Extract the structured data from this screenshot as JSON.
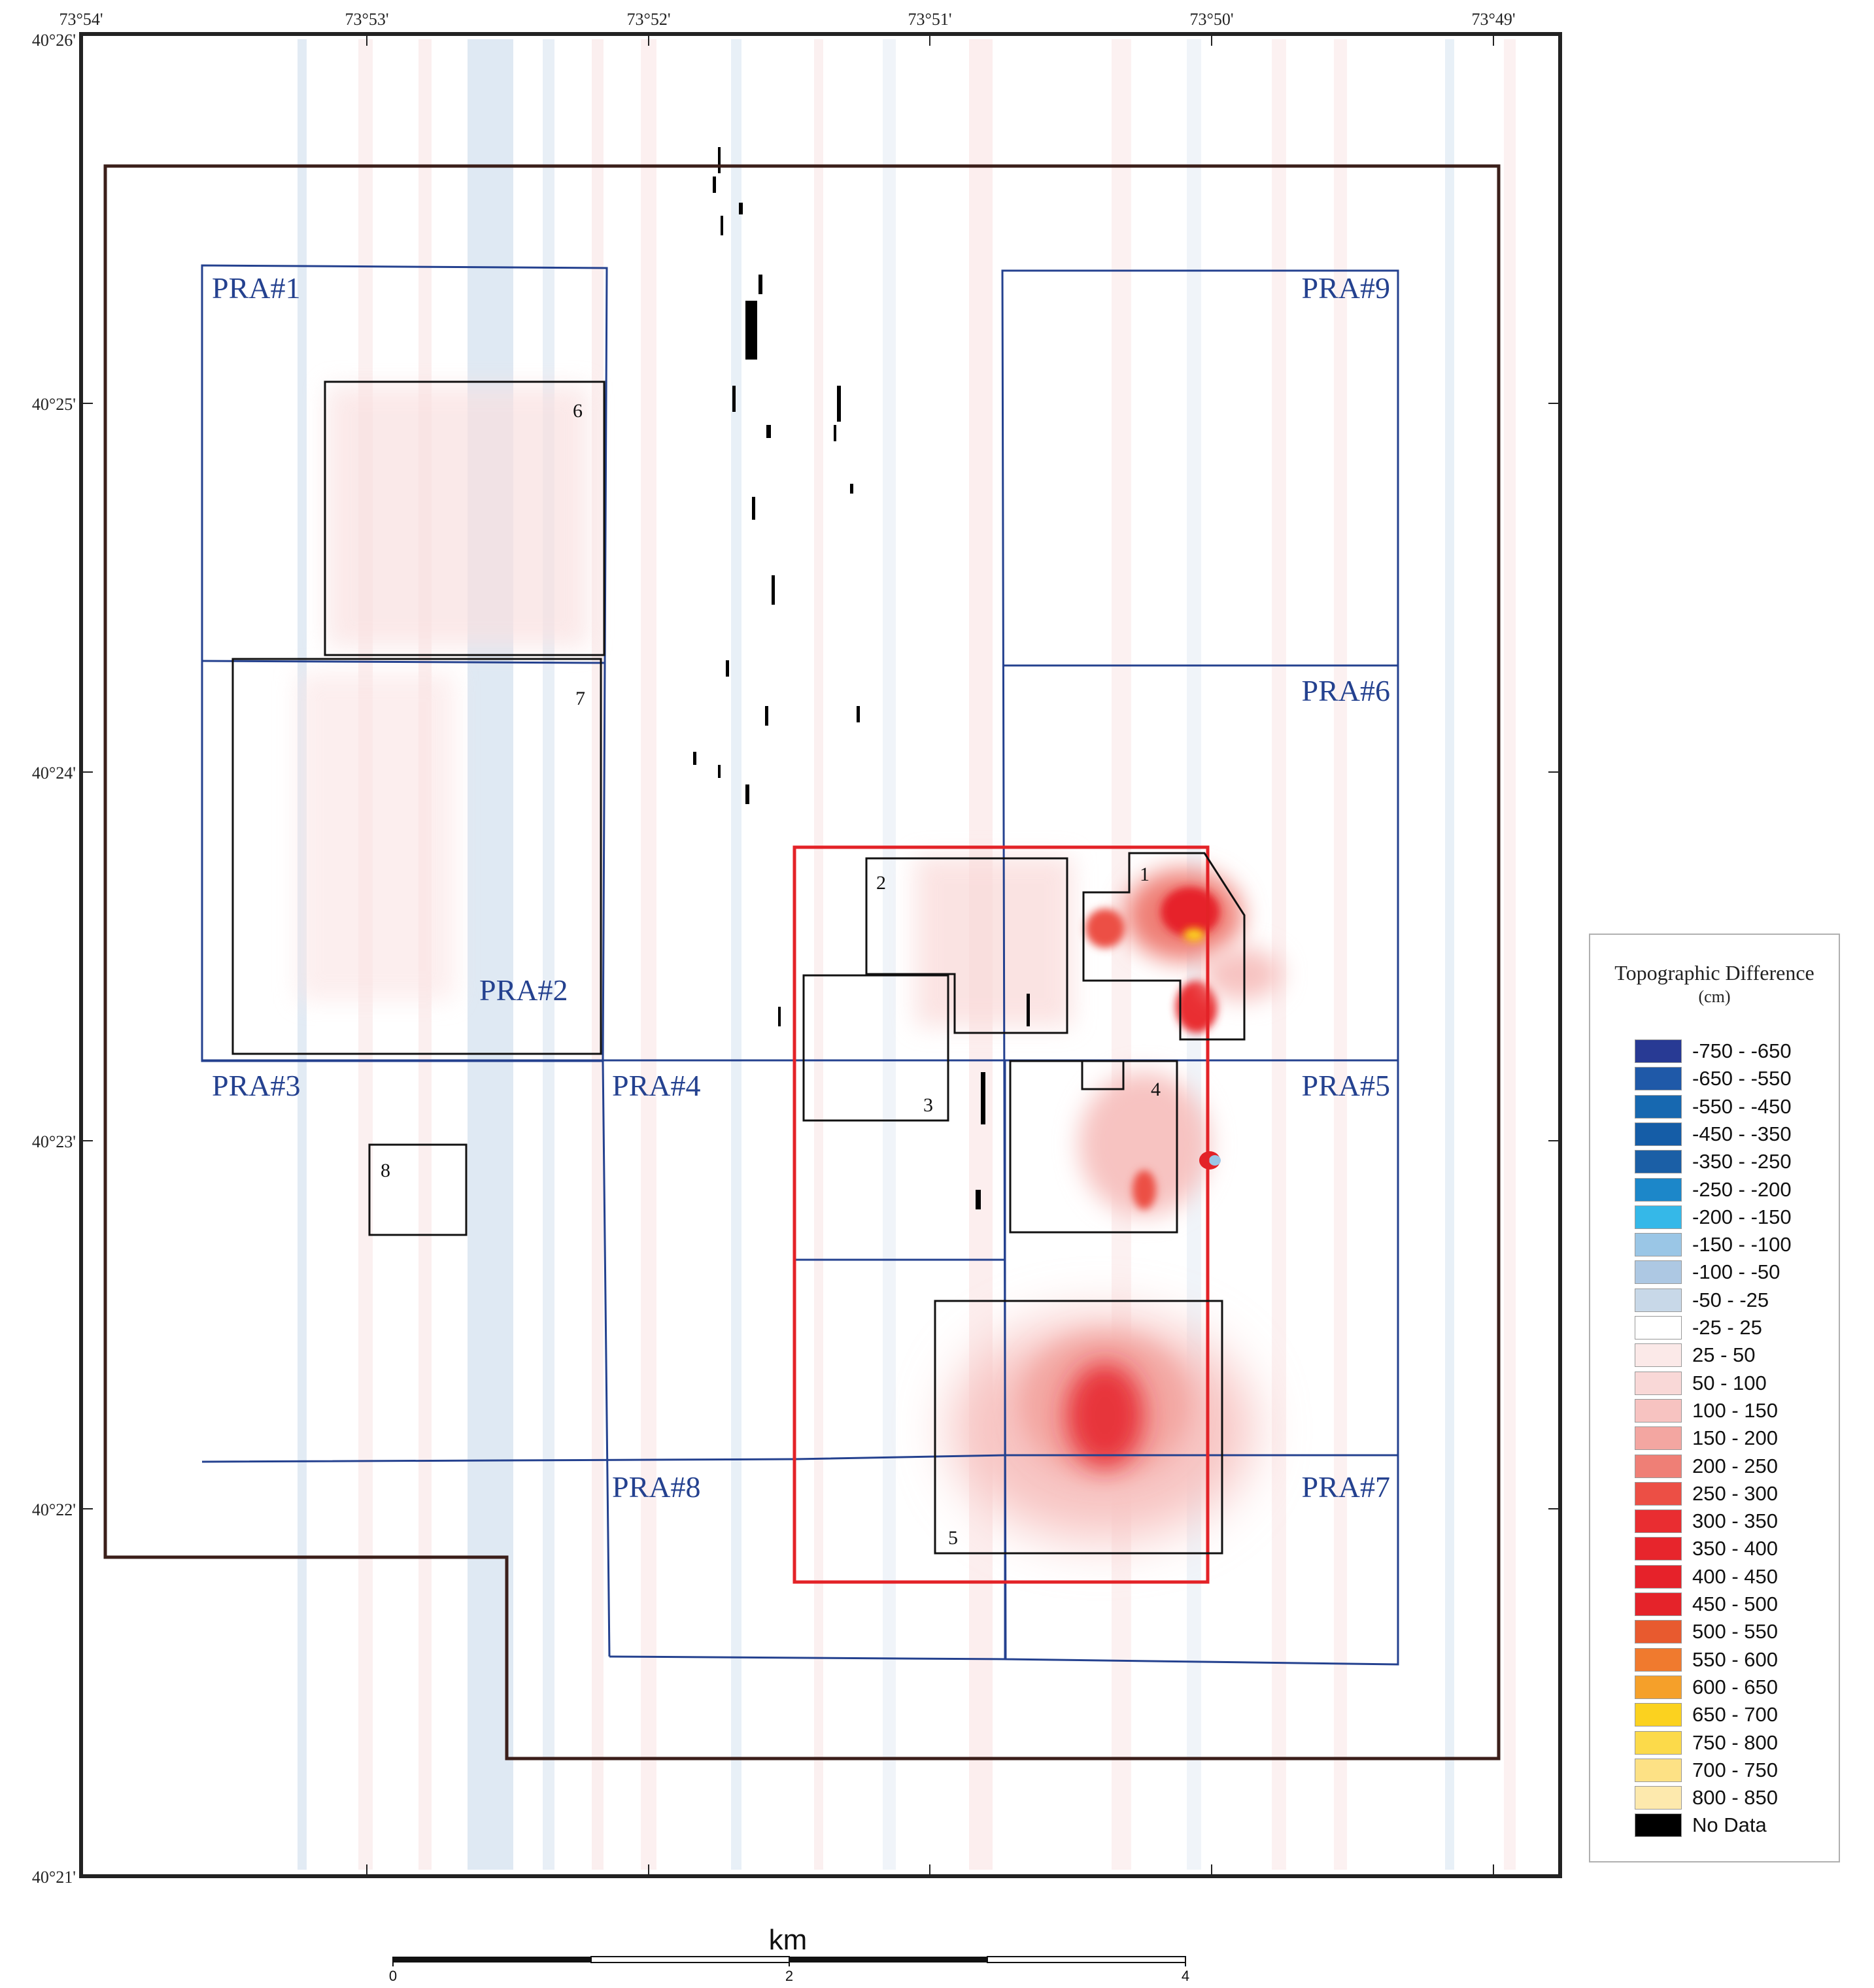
{
  "top_longitude_labels": [
    "73°54'",
    "73°53'",
    "73°52'",
    "73°51'",
    "73°50'",
    "73°49'"
  ],
  "left_latitude_labels": [
    "40°26'",
    "40°25'",
    "40°24'",
    "40°23'",
    "40°22'",
    "40°21'"
  ],
  "permitted_areas": [
    "PRA#1",
    "PRA#2",
    "PRA#3",
    "PRA#4",
    "PRA#5",
    "PRA#6",
    "PRA#7",
    "PRA#8",
    "PRA#9"
  ],
  "box_numbers": [
    "1",
    "2",
    "3",
    "4",
    "5",
    "6",
    "7",
    "8"
  ],
  "scale_bar": {
    "unit": "km",
    "ticks": [
      "0",
      "2",
      "4"
    ]
  },
  "legend": {
    "title": "Topographic Difference",
    "unit": "(cm)",
    "items": [
      {
        "label": "-750 - -650",
        "color": "#283a94"
      },
      {
        "label": "-650 - -550",
        "color": "#1f59a8"
      },
      {
        "label": "-550 - -450",
        "color": "#1768b0"
      },
      {
        "label": "-450 - -350",
        "color": "#155da7"
      },
      {
        "label": "-350 - -250",
        "color": "#1b5fa6"
      },
      {
        "label": "-250 - -200",
        "color": "#1c87c9"
      },
      {
        "label": "-200 - -150",
        "color": "#35b8e8"
      },
      {
        "label": "-150 - -100",
        "color": "#9ac6e6"
      },
      {
        "label": "-100 - -50",
        "color": "#adc8e3"
      },
      {
        "label": "-50 - -25",
        "color": "#c8d8e8"
      },
      {
        "label": "-25 - 25",
        "color": "#ffffff"
      },
      {
        "label": "25 - 50",
        "color": "#fbe9e8"
      },
      {
        "label": "50 - 100",
        "color": "#f9d8d7"
      },
      {
        "label": "100 - 150",
        "color": "#f7c3c1"
      },
      {
        "label": "150 - 200",
        "color": "#f3a6a1"
      },
      {
        "label": "200 - 250",
        "color": "#ef7f76"
      },
      {
        "label": "250 - 300",
        "color": "#ec4f45"
      },
      {
        "label": "300 - 350",
        "color": "#e92d31"
      },
      {
        "label": "350 - 400",
        "color": "#e7252c"
      },
      {
        "label": "400 - 450",
        "color": "#e6222a"
      },
      {
        "label": "450 - 500",
        "color": "#e5232a"
      },
      {
        "label": "500 - 550",
        "color": "#e85a2f"
      },
      {
        "label": "550 - 600",
        "color": "#f07a2e"
      },
      {
        "label": "600 - 650",
        "color": "#f5a02a"
      },
      {
        "label": "650 - 700",
        "color": "#fbd21f"
      },
      {
        "label": "750 - 800",
        "color": "#fcda4a"
      },
      {
        "label": "700 - 750",
        "color": "#fde185"
      },
      {
        "label": "800 - 850",
        "color": "#fde9ad"
      },
      {
        "label": "No Data",
        "color": "#000000"
      }
    ]
  },
  "colors": {
    "frame": "#222222",
    "survey_boundary": "#3b1f1a",
    "pra_boundary": "#24418f",
    "study_box": "#e32227",
    "sub_box": "#111111"
  }
}
